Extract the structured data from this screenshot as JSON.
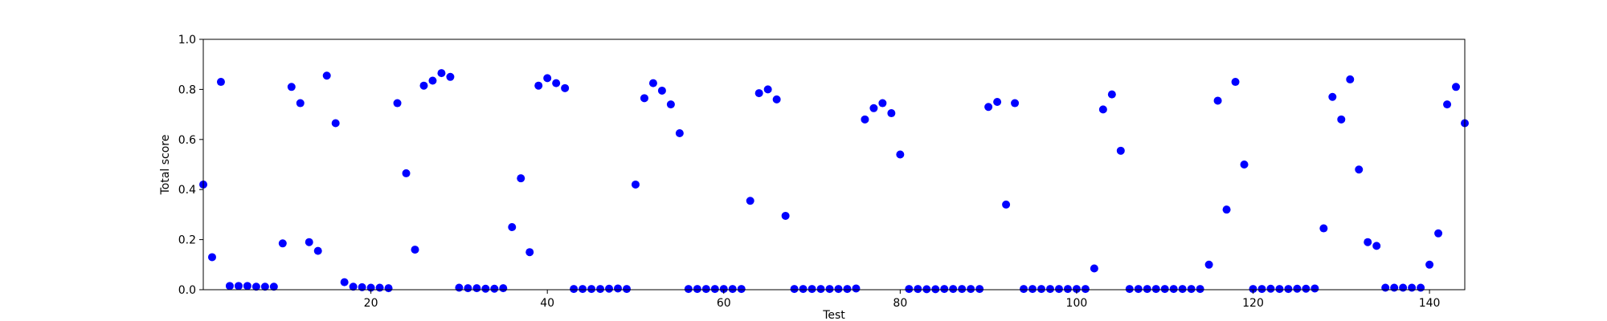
{
  "chart_data": {
    "type": "scatter",
    "title": "",
    "xlabel": "Test",
    "ylabel": "Total score",
    "xlim": [
      1,
      144
    ],
    "ylim": [
      0.0,
      1.0
    ],
    "xticks": [
      20,
      40,
      60,
      80,
      100,
      120,
      140
    ],
    "yticks": [
      0.0,
      0.2,
      0.4,
      0.6,
      0.8,
      1.0
    ],
    "xtick_labels": [
      "20",
      "40",
      "60",
      "80",
      "100",
      "120",
      "140"
    ],
    "ytick_labels": [
      "0.0",
      "0.2",
      "0.4",
      "0.6",
      "0.8",
      "1.0"
    ],
    "grid": false,
    "legend": "none",
    "marker_color": "#0000ff",
    "x": [
      1,
      2,
      3,
      4,
      5,
      6,
      7,
      8,
      9,
      10,
      11,
      12,
      13,
      14,
      15,
      16,
      17,
      18,
      19,
      20,
      21,
      22,
      23,
      24,
      25,
      26,
      27,
      28,
      29,
      30,
      31,
      32,
      33,
      34,
      35,
      36,
      37,
      38,
      39,
      40,
      41,
      42,
      43,
      44,
      45,
      46,
      47,
      48,
      49,
      50,
      51,
      52,
      53,
      54,
      55,
      56,
      57,
      58,
      59,
      60,
      61,
      62,
      63,
      64,
      65,
      66,
      67,
      68,
      69,
      70,
      71,
      72,
      73,
      74,
      75,
      76,
      77,
      78,
      79,
      80,
      81,
      82,
      83,
      84,
      85,
      86,
      87,
      88,
      89,
      90,
      91,
      92,
      93,
      94,
      95,
      96,
      97,
      98,
      99,
      100,
      101,
      102,
      103,
      104,
      105,
      106,
      107,
      108,
      109,
      110,
      111,
      112,
      113,
      114,
      115,
      116,
      117,
      118,
      119,
      120,
      121,
      122,
      123,
      124,
      125,
      126,
      127,
      128,
      129,
      130,
      131,
      132,
      133,
      134,
      135,
      136,
      137,
      138,
      139,
      140,
      141,
      142,
      143,
      144
    ],
    "y": [
      0.42,
      0.13,
      0.83,
      0.015,
      0.015,
      0.015,
      0.012,
      0.012,
      0.012,
      0.185,
      0.81,
      0.745,
      0.19,
      0.155,
      0.855,
      0.665,
      0.03,
      0.012,
      0.01,
      0.008,
      0.008,
      0.006,
      0.745,
      0.465,
      0.16,
      0.815,
      0.835,
      0.865,
      0.85,
      0.008,
      0.006,
      0.006,
      0.004,
      0.004,
      0.006,
      0.25,
      0.445,
      0.15,
      0.815,
      0.845,
      0.825,
      0.805,
      0.003,
      0.003,
      0.003,
      0.003,
      0.004,
      0.005,
      0.003,
      0.42,
      0.765,
      0.825,
      0.795,
      0.74,
      0.625,
      0.003,
      0.003,
      0.003,
      0.003,
      0.003,
      0.003,
      0.003,
      0.355,
      0.785,
      0.8,
      0.76,
      0.295,
      0.003,
      0.003,
      0.003,
      0.003,
      0.003,
      0.003,
      0.003,
      0.005,
      0.68,
      0.725,
      0.745,
      0.705,
      0.54,
      0.003,
      0.003,
      0.002,
      0.002,
      0.003,
      0.003,
      0.003,
      0.003,
      0.003,
      0.73,
      0.75,
      0.34,
      0.745,
      0.003,
      0.003,
      0.003,
      0.003,
      0.003,
      0.003,
      0.003,
      0.003,
      0.085,
      0.72,
      0.78,
      0.555,
      0.003,
      0.003,
      0.003,
      0.003,
      0.003,
      0.003,
      0.003,
      0.003,
      0.003,
      0.1,
      0.755,
      0.32,
      0.83,
      0.5,
      0.003,
      0.003,
      0.004,
      0.003,
      0.003,
      0.004,
      0.004,
      0.005,
      0.245,
      0.77,
      0.68,
      0.84,
      0.48,
      0.19,
      0.175,
      0.008,
      0.008,
      0.008,
      0.008,
      0.008,
      0.1,
      0.225,
      0.74,
      0.81,
      0.665
    ]
  }
}
